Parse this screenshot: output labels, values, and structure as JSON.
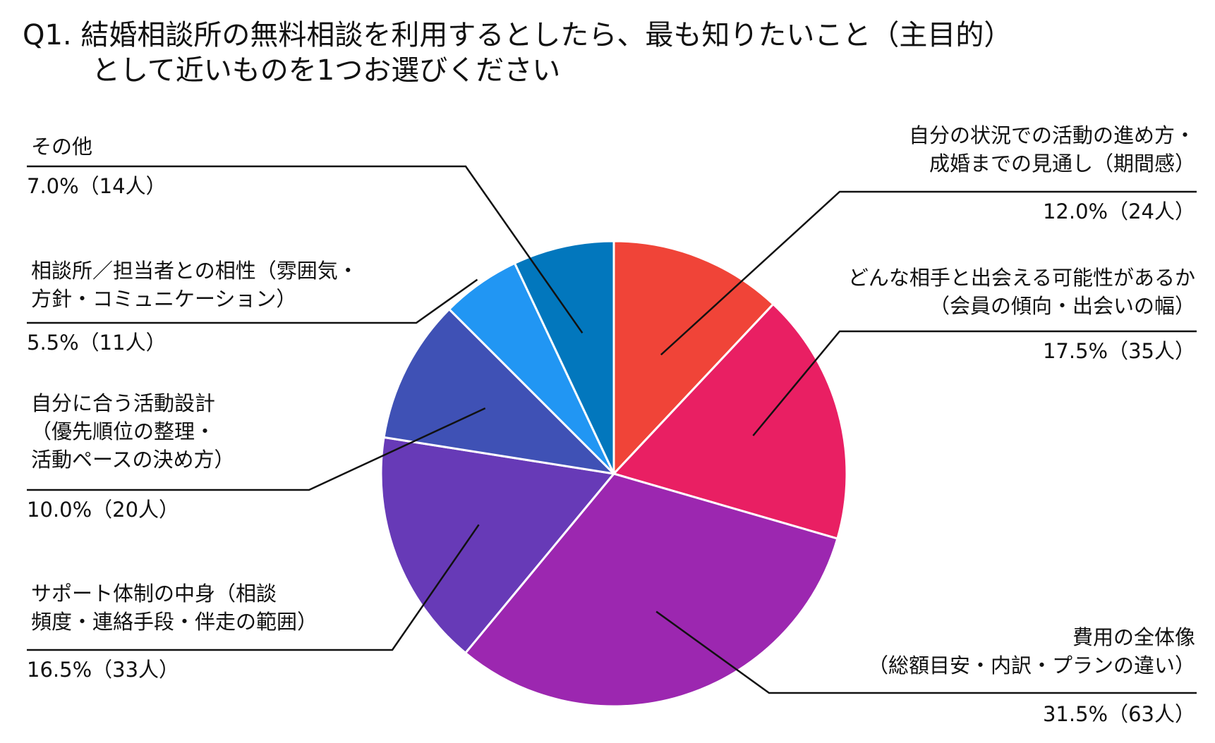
{
  "title": {
    "line1": "Q1. 結婚相談所の無料相談を利用するとしたら、最も知りたいこと（主目的）",
    "line2": "として近いものを1つお選びください"
  },
  "chart_data": {
    "type": "pie",
    "title": "Q1. 結婚相談所の無料相談を利用するとしたら、最も知りたいこと（主目的）として近いものを1つお選びください",
    "slices": [
      {
        "label_lines": [
          "自分の状況での活動の進め方・",
          "成婚までの見通し（期間感）"
        ],
        "value": 12.0,
        "count": 24,
        "value_text": "12.0%（24人）",
        "color": "#F04438"
      },
      {
        "label_lines": [
          "どんな相手と出会える可能性があるか",
          "（会員の傾向・出会いの幅）"
        ],
        "value": 17.5,
        "count": 35,
        "value_text": "17.5%（35人）",
        "color": "#E91F63"
      },
      {
        "label_lines": [
          "費用の全体像",
          "（総額目安・内訳・プランの違い）"
        ],
        "value": 31.5,
        "count": 63,
        "value_text": "31.5%（63人）",
        "color": "#9C27B0"
      },
      {
        "label_lines": [
          "サポート体制の中身（相談",
          "頻度・連絡手段・伴走の範囲）"
        ],
        "value": 16.5,
        "count": 33,
        "value_text": "16.5%（33人）",
        "color": "#673AB7"
      },
      {
        "label_lines": [
          "自分に合う活動設計",
          "（優先順位の整理・",
          "活動ペースの決め方）"
        ],
        "value": 10.0,
        "count": 20,
        "value_text": "10.0%（20人）",
        "color": "#3F51B5"
      },
      {
        "label_lines": [
          "相談所／担当者との相性（雰囲気・",
          "方針・コミュニケーション）"
        ],
        "value": 5.5,
        "count": 11,
        "value_text": "5.5%（11人）",
        "color": "#2196F3"
      },
      {
        "label_lines": [
          "その他"
        ],
        "value": 7.0,
        "count": 14,
        "value_text": "7.0%（14人）",
        "color": "#0277BD"
      }
    ]
  }
}
